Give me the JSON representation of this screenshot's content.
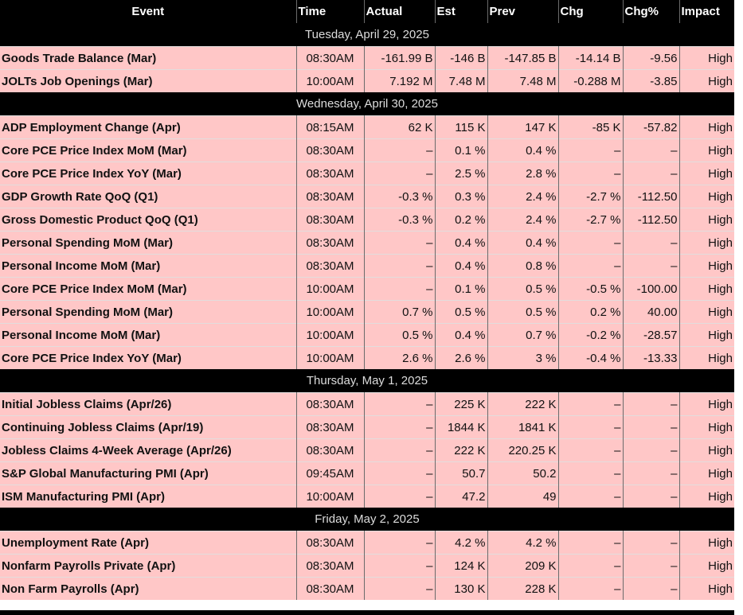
{
  "columns": [
    "Event",
    "Time",
    "Actual",
    "Est",
    "Prev",
    "Chg",
    "Chg%",
    "Impact"
  ],
  "colors": {
    "header_bg": "#000000",
    "row_bg": "#ffc7c7",
    "text": "#111111"
  },
  "groups": [
    {
      "date": "Tuesday, April 29, 2025",
      "rows": [
        [
          "Goods Trade Balance (Mar)",
          "08:30AM",
          "-161.99 B",
          "-146 B",
          "-147.85 B",
          "-14.14 B",
          "-9.56",
          "High"
        ],
        [
          "JOLTs Job Openings (Mar)",
          "10:00AM",
          "7.192 M",
          "7.48 M",
          "7.48 M",
          "-0.288 M",
          "-3.85",
          "High"
        ]
      ]
    },
    {
      "date": "Wednesday, April 30, 2025",
      "rows": [
        [
          "ADP Employment Change (Apr)",
          "08:15AM",
          "62 K",
          "115 K",
          "147 K",
          "-85 K",
          "-57.82",
          "High"
        ],
        [
          "Core PCE Price Index MoM (Mar)",
          "08:30AM",
          "–",
          "0.1 %",
          "0.4 %",
          "–",
          "–",
          "High"
        ],
        [
          "Core PCE Price Index YoY (Mar)",
          "08:30AM",
          "–",
          "2.5 %",
          "2.8 %",
          "–",
          "–",
          "High"
        ],
        [
          "GDP Growth Rate QoQ (Q1)",
          "08:30AM",
          "-0.3 %",
          "0.3 %",
          "2.4 %",
          "-2.7 %",
          "-112.50",
          "High"
        ],
        [
          "Gross Domestic Product QoQ (Q1)",
          "08:30AM",
          "-0.3 %",
          "0.2 %",
          "2.4 %",
          "-2.7 %",
          "-112.50",
          "High"
        ],
        [
          "Personal Spending MoM (Mar)",
          "08:30AM",
          "–",
          "0.4 %",
          "0.4 %",
          "–",
          "–",
          "High"
        ],
        [
          "Personal Income MoM (Mar)",
          "08:30AM",
          "–",
          "0.4 %",
          "0.8 %",
          "–",
          "–",
          "High"
        ],
        [
          "Core PCE Price Index MoM (Mar)",
          "10:00AM",
          "–",
          "0.1 %",
          "0.5 %",
          "-0.5 %",
          "-100.00",
          "High"
        ],
        [
          "Personal Spending MoM (Mar)",
          "10:00AM",
          "0.7 %",
          "0.5 %",
          "0.5 %",
          "0.2 %",
          "40.00",
          "High"
        ],
        [
          "Personal Income MoM (Mar)",
          "10:00AM",
          "0.5 %",
          "0.4 %",
          "0.7 %",
          "-0.2 %",
          "-28.57",
          "High"
        ],
        [
          "Core PCE Price Index YoY (Mar)",
          "10:00AM",
          "2.6 %",
          "2.6 %",
          "3 %",
          "-0.4 %",
          "-13.33",
          "High"
        ]
      ]
    },
    {
      "date": "Thursday, May 1, 2025",
      "rows": [
        [
          "Initial Jobless Claims (Apr/26)",
          "08:30AM",
          "–",
          "225 K",
          "222 K",
          "–",
          "–",
          "High"
        ],
        [
          "Continuing Jobless Claims (Apr/19)",
          "08:30AM",
          "–",
          "1844 K",
          "1841 K",
          "–",
          "–",
          "High"
        ],
        [
          "Jobless Claims 4-Week Average (Apr/26)",
          "08:30AM",
          "–",
          "222 K",
          "220.25 K",
          "–",
          "–",
          "High"
        ],
        [
          "S&P Global Manufacturing PMI (Apr)",
          "09:45AM",
          "–",
          "50.7",
          "50.2",
          "–",
          "–",
          "High"
        ],
        [
          "ISM Manufacturing PMI (Apr)",
          "10:00AM",
          "–",
          "47.2",
          "49",
          "–",
          "–",
          "High"
        ]
      ]
    },
    {
      "date": "Friday, May 2, 2025",
      "rows": [
        [
          "Unemployment Rate (Apr)",
          "08:30AM",
          "–",
          "4.2 %",
          "4.2 %",
          "–",
          "–",
          "High"
        ],
        [
          "Nonfarm Payrolls Private (Apr)",
          "08:30AM",
          "–",
          "124 K",
          "209 K",
          "–",
          "–",
          "High"
        ],
        [
          "Non Farm Payrolls (Apr)",
          "08:30AM",
          "–",
          "130 K",
          "228 K",
          "–",
          "–",
          "High"
        ]
      ]
    }
  ]
}
